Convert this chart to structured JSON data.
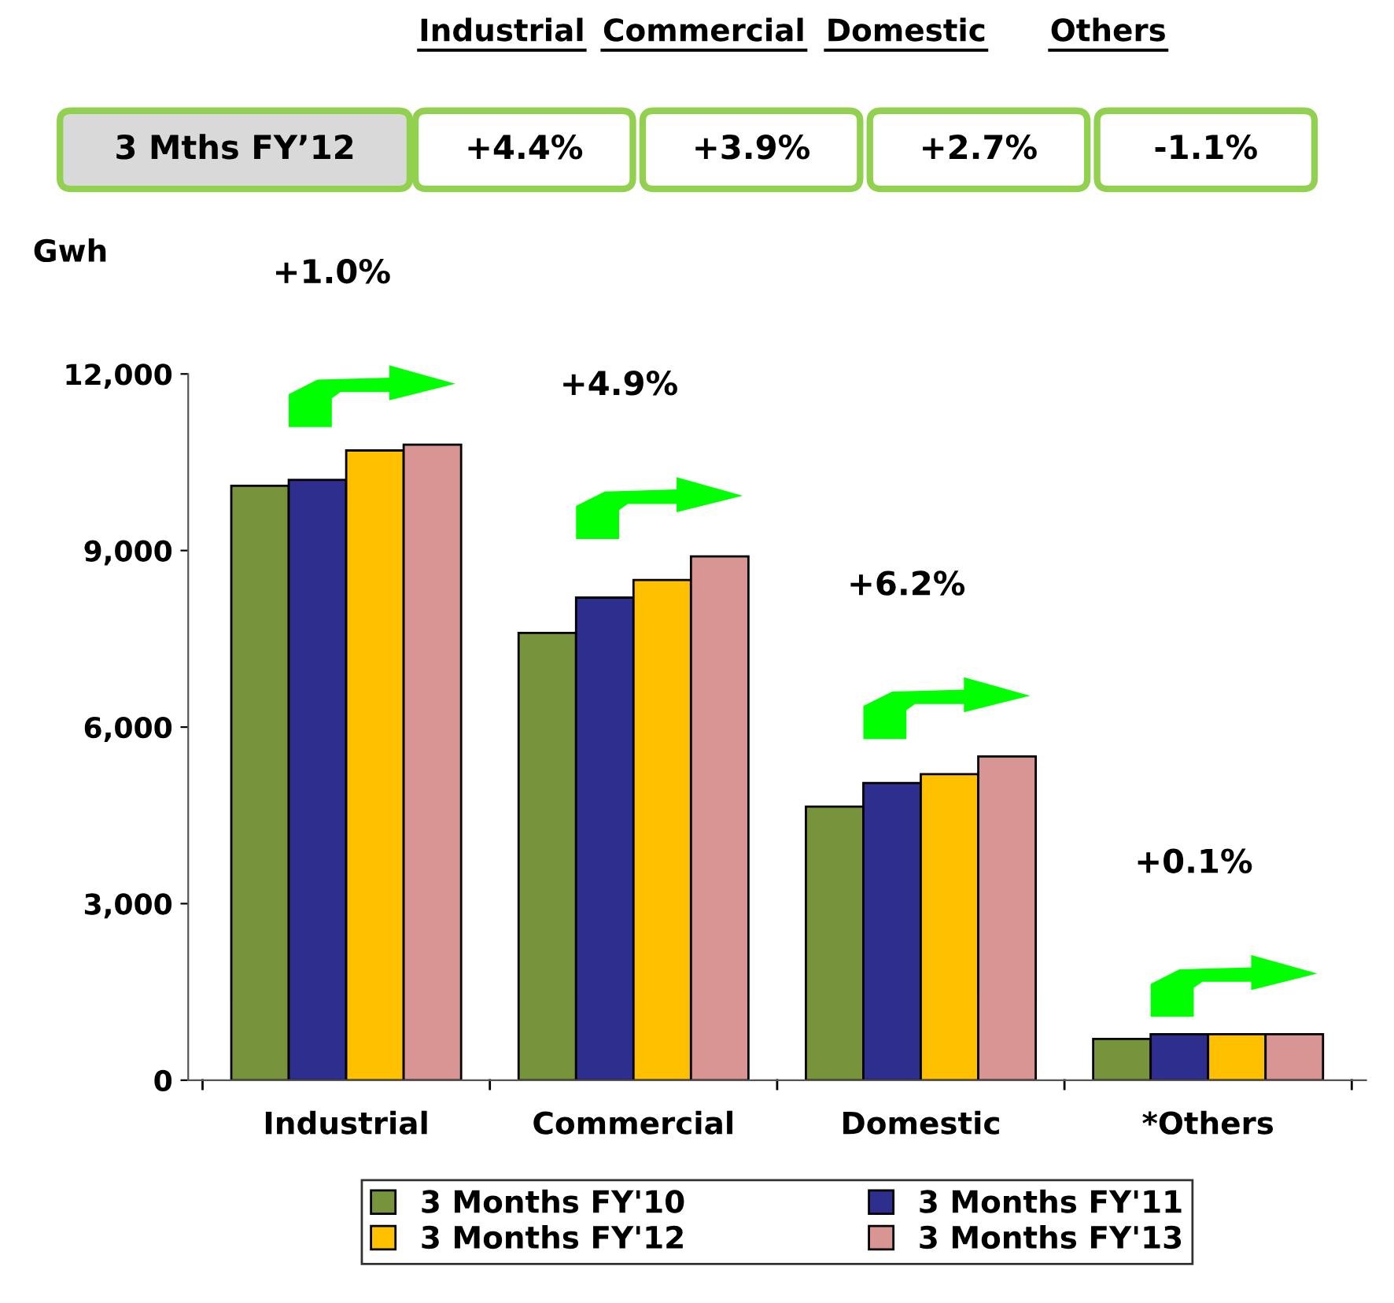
{
  "chart_data": {
    "type": "bar",
    "ylabel": "Gwh",
    "categories": [
      "Industrial",
      "Commercial",
      "Domestic",
      "*Others"
    ],
    "series": [
      {
        "name": "3 Months FY'10",
        "color": "#77933c",
        "values": [
          10100,
          7600,
          4650,
          700
        ]
      },
      {
        "name": "3 Months FY'11",
        "color": "#2e2e8f",
        "values": [
          10200,
          8200,
          5050,
          780
        ]
      },
      {
        "name": "3 Months FY'12",
        "color": "#ffc000",
        "values": [
          10700,
          8500,
          5200,
          780
        ]
      },
      {
        "name": "3 Months FY'13",
        "color": "#d99594",
        "values": [
          10800,
          8900,
          5500,
          780
        ]
      }
    ],
    "ylim": [
      0,
      12000
    ],
    "yticks": [
      {
        "value": 0,
        "label": "0"
      },
      {
        "value": 3000,
        "label": "3,000"
      },
      {
        "value": 6000,
        "label": "6,000"
      },
      {
        "value": 9000,
        "label": "9,000"
      },
      {
        "value": 12000,
        "label": "12,000"
      }
    ],
    "grid": false,
    "legend": "bottom",
    "annotations": [
      "Industrial",
      "Commercial",
      "Domestic",
      "Others",
      "3 Mths FY’12",
      "+4.4%",
      "+3.9%",
      "+2.7%",
      "-1.1%",
      "+1.0%",
      "+4.9%",
      "+6.2%",
      "+0.1%"
    ]
  }
}
